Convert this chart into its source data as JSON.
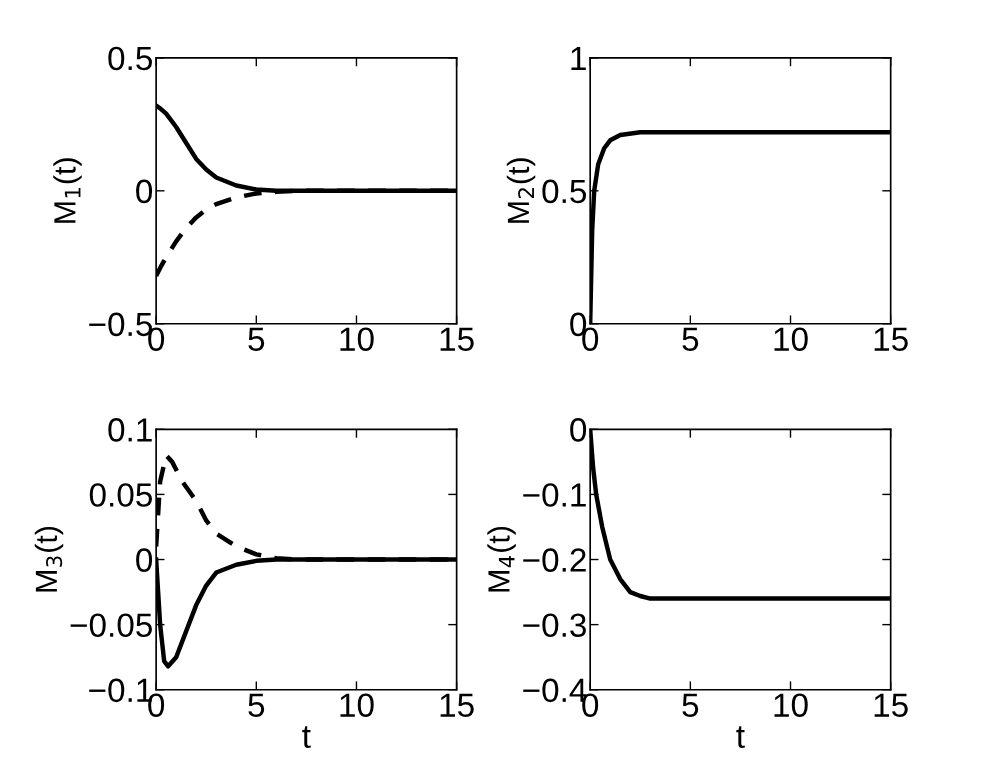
{
  "chart_data": [
    {
      "type": "line",
      "ylabel": "M$_{1}$(t)",
      "xlim": [
        0,
        15
      ],
      "ylim": [
        -0.5,
        0.5
      ],
      "xticks": [
        0,
        5,
        10,
        15
      ],
      "yticks": [
        -0.5,
        0,
        0.5
      ],
      "grid": false,
      "legend": false,
      "series": [
        {
          "color": "#000000",
          "line_style": "solid",
          "x": [
            0,
            0.2,
            0.5,
            1,
            1.5,
            2,
            2.5,
            3,
            4,
            5,
            6,
            8,
            15
          ],
          "values": [
            0.32,
            0.31,
            0.29,
            0.24,
            0.18,
            0.12,
            0.08,
            0.05,
            0.02,
            0.005,
            0,
            0,
            0
          ]
        },
        {
          "color": "#000000",
          "line_style": "dashed",
          "x": [
            0,
            0.2,
            0.5,
            1,
            1.5,
            2,
            2.5,
            3,
            4,
            5,
            6,
            7,
            15
          ],
          "values": [
            -0.32,
            -0.29,
            -0.25,
            -0.19,
            -0.14,
            -0.1,
            -0.07,
            -0.05,
            -0.025,
            -0.01,
            -0.004,
            0,
            0
          ]
        }
      ]
    },
    {
      "type": "line",
      "ylabel": "M$_{2}$(t)",
      "xlim": [
        0,
        15
      ],
      "ylim": [
        0,
        1
      ],
      "xticks": [
        0,
        5,
        10,
        15
      ],
      "yticks": [
        0,
        0.5,
        1
      ],
      "grid": false,
      "legend": false,
      "series": [
        {
          "color": "#000000",
          "line_style": "solid",
          "x": [
            0,
            0.1,
            0.2,
            0.4,
            0.7,
            1,
            1.5,
            2.5,
            4,
            15
          ],
          "values": [
            0,
            0.35,
            0.5,
            0.6,
            0.66,
            0.69,
            0.71,
            0.72,
            0.72,
            0.72
          ]
        }
      ]
    },
    {
      "type": "line",
      "ylabel": "M$_{3}$(t)",
      "xlabel": "t",
      "xlim": [
        0,
        15
      ],
      "ylim": [
        -0.1,
        0.1
      ],
      "xticks": [
        0,
        5,
        10,
        15
      ],
      "yticks": [
        -0.1,
        -0.05,
        0,
        0.05,
        0.1
      ],
      "grid": false,
      "legend": false,
      "series": [
        {
          "color": "#000000",
          "line_style": "solid",
          "x": [
            0,
            0.2,
            0.4,
            0.6,
            1,
            1.5,
            2,
            2.5,
            3,
            4,
            5,
            6,
            15
          ],
          "values": [
            0,
            -0.05,
            -0.078,
            -0.082,
            -0.075,
            -0.055,
            -0.035,
            -0.02,
            -0.01,
            -0.004,
            -0.001,
            0,
            0
          ]
        },
        {
          "color": "#000000",
          "line_style": "dashed",
          "x": [
            0,
            0.2,
            0.5,
            0.8,
            1.3,
            2,
            2.5,
            3,
            4,
            5,
            6,
            7,
            15
          ],
          "values": [
            0.01,
            0.06,
            0.08,
            0.075,
            0.06,
            0.045,
            0.03,
            0.02,
            0.01,
            0.004,
            0.001,
            0,
            0
          ]
        }
      ]
    },
    {
      "type": "line",
      "ylabel": "M$_{4}$(t)",
      "xlabel": "t",
      "xlim": [
        0,
        15
      ],
      "ylim": [
        -0.4,
        0
      ],
      "xticks": [
        0,
        5,
        10,
        15
      ],
      "yticks": [
        -0.4,
        -0.3,
        -0.2,
        -0.1,
        0
      ],
      "grid": false,
      "legend": false,
      "series": [
        {
          "color": "#000000",
          "line_style": "solid",
          "x": [
            0,
            0.15,
            0.3,
            0.6,
            1,
            1.5,
            2,
            2.5,
            3,
            4,
            15
          ],
          "values": [
            0,
            -0.06,
            -0.1,
            -0.15,
            -0.2,
            -0.23,
            -0.25,
            -0.256,
            -0.26,
            -0.26,
            -0.26
          ]
        }
      ]
    }
  ]
}
